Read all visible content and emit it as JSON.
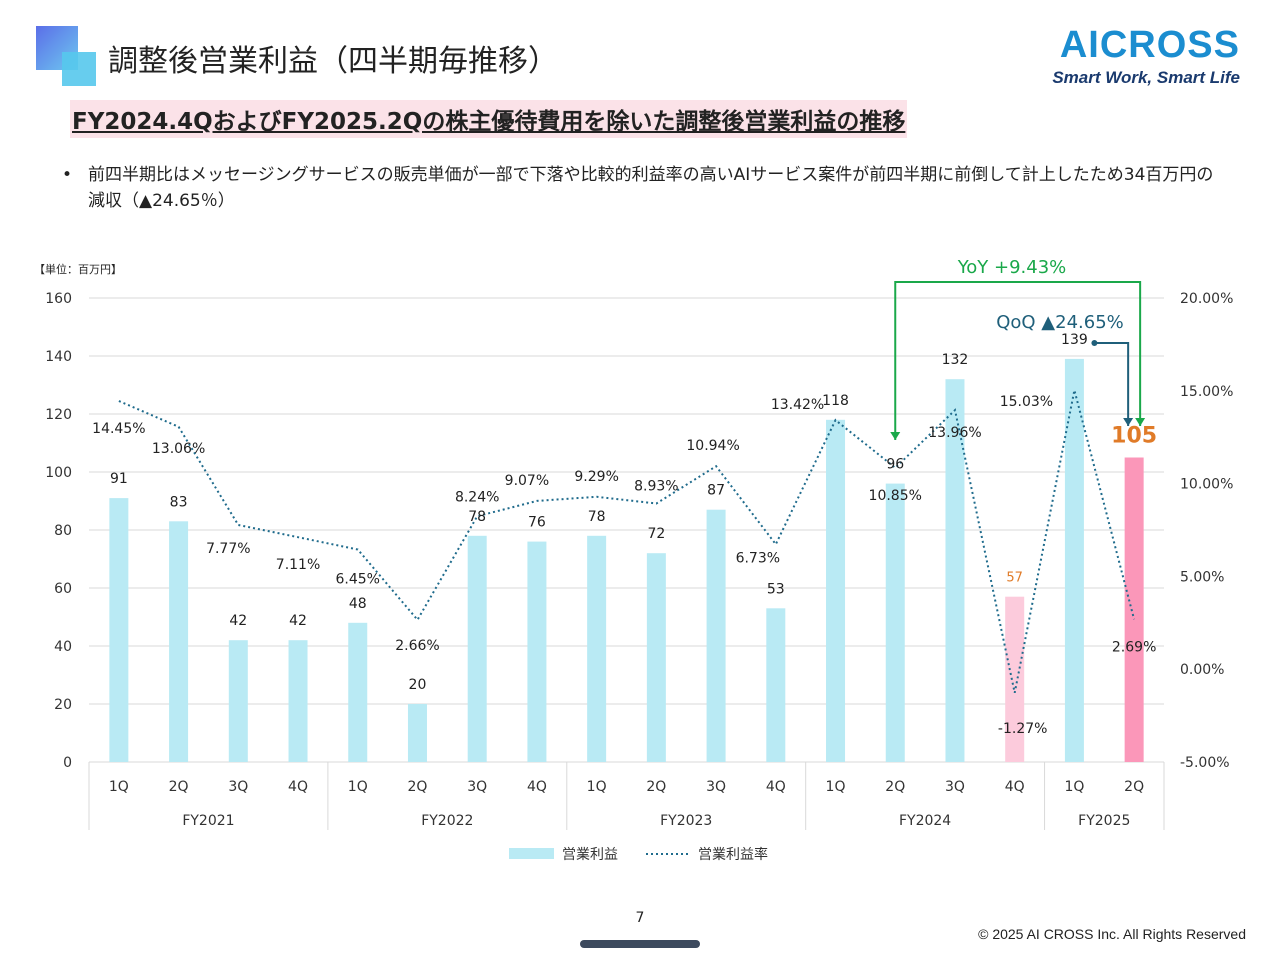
{
  "header": {
    "title": "調整後営業利益（四半期毎推移）",
    "logo_main": "AICROSS",
    "logo_sub": "Smart Work, Smart Life"
  },
  "subtitle": "FY2024.4QおよびFY2025.2Qの株主優待費用を除いた調整後営業利益の推移",
  "bullet": {
    "marker": "•",
    "text": "前四半期比はメッセージングサービスの販売単価が一部で下落や比較的利益率の高いAIサービス案件が前四半期に前倒して計上したため34百万円の減収（▲24.65％）"
  },
  "footer": {
    "page_number": "7",
    "copyright": "© 2025 AI CROSS Inc. All Rights Reserved"
  },
  "colors": {
    "bar": "#b9eaf4",
    "bar_highlight_light": "#fccbdc",
    "bar_highlight": "#fb97b9",
    "line": "#1f6b8c",
    "yoy": "#1aa84a",
    "qoq": "#1f5f7a",
    "label_accent": "#e07b28",
    "grid": "#d9d9d9"
  },
  "chart_data": {
    "type": "bar",
    "unit_label": "【単位：百万円】",
    "categories": [
      "1Q",
      "2Q",
      "3Q",
      "4Q",
      "1Q",
      "2Q",
      "3Q",
      "4Q",
      "1Q",
      "2Q",
      "3Q",
      "4Q",
      "1Q",
      "2Q",
      "3Q",
      "4Q",
      "1Q",
      "2Q"
    ],
    "groups": [
      {
        "label": "FY2021",
        "count": 4
      },
      {
        "label": "FY2022",
        "count": 4
      },
      {
        "label": "FY2023",
        "count": 4
      },
      {
        "label": "FY2024",
        "count": 4
      },
      {
        "label": "FY2025",
        "count": 2
      }
    ],
    "series": [
      {
        "name": "営業利益",
        "kind": "bar",
        "axis": "left",
        "values": [
          91,
          83,
          42,
          42,
          48,
          20,
          78,
          76,
          78,
          72,
          87,
          53,
          118,
          96,
          132,
          57,
          139,
          105
        ],
        "labels": [
          "91",
          "83",
          "42",
          "42",
          "48",
          "20",
          "78",
          "76",
          "78",
          "72",
          "87",
          "53",
          "118",
          "96",
          "132",
          "57",
          "139",
          "105"
        ],
        "highlight": {
          "15": "light",
          "17": "strong"
        }
      },
      {
        "name": "営業利益率",
        "kind": "line",
        "axis": "right",
        "style": "dotted",
        "values": [
          14.45,
          13.06,
          7.77,
          7.11,
          6.45,
          2.66,
          8.24,
          9.07,
          9.29,
          8.93,
          10.94,
          6.73,
          13.42,
          10.85,
          13.96,
          -1.27,
          15.03,
          2.69
        ],
        "labels": [
          "14.45%",
          "13.06%",
          "7.77%",
          "7.11%",
          "6.45%",
          "2.66%",
          "8.24%",
          "9.07%",
          "9.29%",
          "8.93%",
          "10.94%",
          "6.73%",
          "13.42%",
          "10.85%",
          "13.96%",
          "-1.27%",
          "15.03%",
          "2.69%"
        ]
      }
    ],
    "y_left": {
      "min": 0,
      "max": 160,
      "ticks": [
        "0",
        "20",
        "40",
        "60",
        "80",
        "100",
        "120",
        "140",
        "160"
      ]
    },
    "y_right": {
      "min": -5,
      "max": 20,
      "ticks": [
        "-5.00%",
        "0.00%",
        "5.00%",
        "10.00%",
        "15.00%",
        "20.00%"
      ]
    },
    "grid": true,
    "legend_position": "bottom",
    "annotations": {
      "yoy": {
        "text": "YoY +9.43%",
        "from_index": 13,
        "to_index": 17
      },
      "qoq": {
        "text": "QoQ ▲24.65%",
        "from_index": 16,
        "to_index": 17
      }
    }
  }
}
